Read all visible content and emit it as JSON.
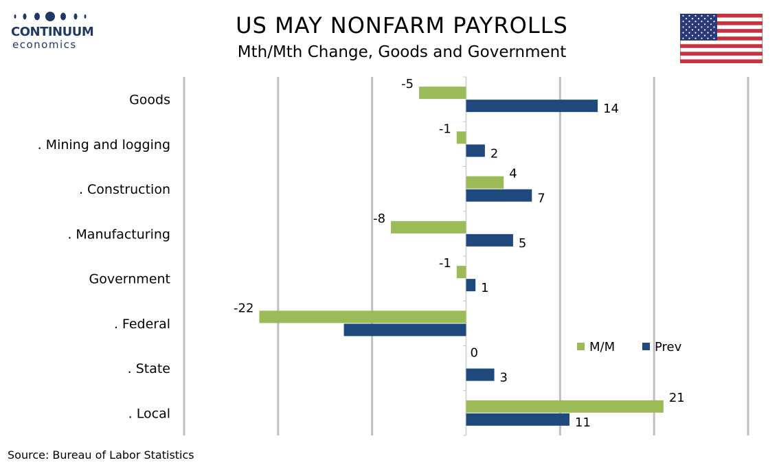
{
  "logo": {
    "name": "CONTINUUM",
    "sub": "economics"
  },
  "flag_icon": "us-flag-icon",
  "source": "Source: Bureau of Labor Statistics",
  "colors": {
    "mm": "#9bbb59",
    "prev": "#1f497d",
    "grid": "#bfbfbf",
    "logo": "#1f3864"
  },
  "chart_data": {
    "type": "bar",
    "orientation": "horizontal",
    "title": "US MAY NONFARM PAYROLLS",
    "subtitle": "Mth/Mth Change, Goods and Government",
    "categories": [
      "Goods",
      ". Mining and logging",
      ". Construction",
      ". Manufacturing",
      "Government",
      ". Federal",
      ". State",
      ". Local"
    ],
    "series": [
      {
        "name": "M/M",
        "values": [
          -5,
          -1,
          4,
          -8,
          -1,
          -22,
          0,
          21
        ],
        "labels": [
          "-5",
          "-1",
          "4",
          "-8",
          "-1",
          "-22",
          "0",
          "21"
        ]
      },
      {
        "name": "Prev",
        "values": [
          14,
          2,
          7,
          5,
          1,
          -13,
          3,
          11
        ],
        "labels": [
          "14",
          "2",
          "7",
          "5",
          "1",
          "",
          "3",
          "11"
        ]
      }
    ],
    "xlim": [
      -30,
      30
    ],
    "grid_step": 10,
    "grid": true,
    "legend_position": "lower-right"
  }
}
